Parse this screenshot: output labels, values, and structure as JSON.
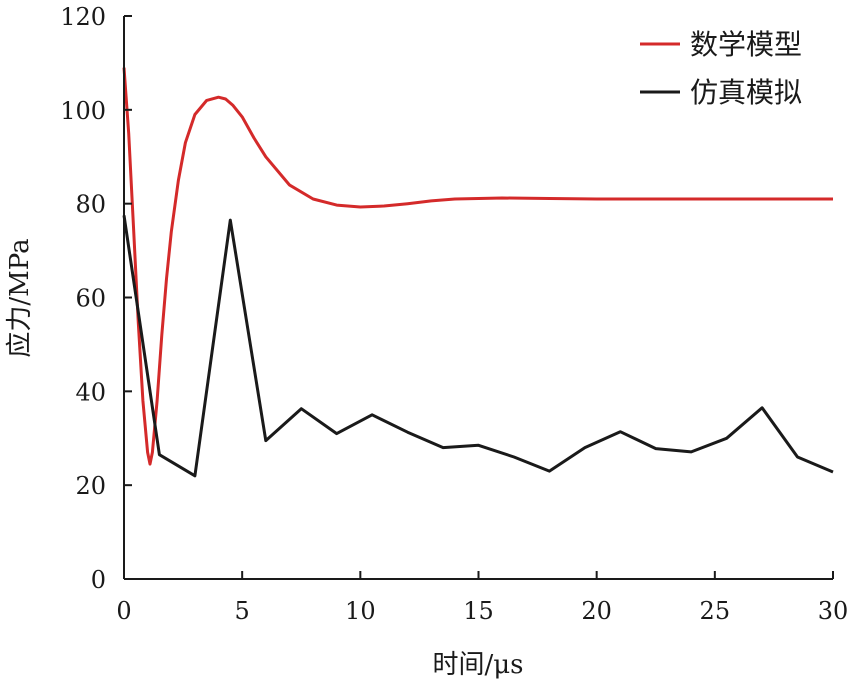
{
  "chart_data": {
    "type": "line",
    "xlabel": "时间/μs",
    "ylabel": "应力/MPa",
    "xlim": [
      0,
      30
    ],
    "ylim": [
      0,
      120
    ],
    "x_ticks": [
      0,
      5,
      10,
      15,
      20,
      25,
      30
    ],
    "y_ticks": [
      0,
      20,
      40,
      60,
      80,
      100,
      120
    ],
    "grid": false,
    "legend_position": "top-right",
    "series": [
      {
        "name": "数学模型",
        "color": "#d42a2a",
        "x": [
          0,
          0.2,
          0.4,
          0.6,
          0.8,
          1.0,
          1.1,
          1.2,
          1.4,
          1.6,
          1.8,
          2.0,
          2.3,
          2.6,
          3.0,
          3.5,
          4.0,
          4.3,
          4.6,
          5.0,
          5.5,
          6.0,
          7.0,
          8.0,
          9.0,
          10.0,
          11.0,
          12.0,
          13.0,
          14.0,
          15.0,
          16.0,
          18.0,
          20.0,
          22.0,
          25.0,
          28.0,
          30.0
        ],
        "y": [
          109,
          95,
          75,
          55,
          38,
          27,
          24.5,
          27,
          38,
          52,
          64,
          74,
          85,
          93,
          99,
          102,
          102.7,
          102.3,
          101,
          98.5,
          94,
          90,
          84,
          81,
          79.7,
          79.3,
          79.5,
          80,
          80.6,
          81,
          81.1,
          81.2,
          81.1,
          81,
          81,
          81,
          81,
          81
        ]
      },
      {
        "name": "仿真模拟",
        "color": "#1a1a1a",
        "x": [
          0,
          1.5,
          3.0,
          4.5,
          6.0,
          7.5,
          9.0,
          10.5,
          12.0,
          13.5,
          15.0,
          16.5,
          18.0,
          19.5,
          21.0,
          22.5,
          24.0,
          25.5,
          27.0,
          28.5,
          30.0
        ],
        "y": [
          77.5,
          26.5,
          22,
          76.5,
          29.5,
          36.3,
          31,
          35,
          31.3,
          28,
          28.5,
          26,
          23,
          28,
          31.4,
          27.8,
          27.1,
          30,
          36.5,
          26,
          22.8
        ]
      }
    ]
  }
}
